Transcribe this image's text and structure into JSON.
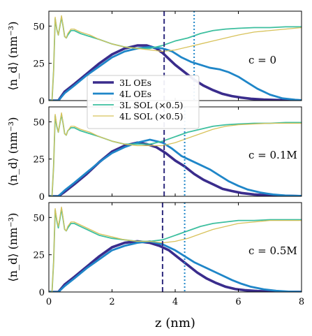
{
  "chart_data": [
    {
      "type": "line",
      "annotation": "c = 0",
      "ylabel": "⟨n_d⟩  (nm⁻³)",
      "xlabel": "",
      "xlim": [
        0,
        8
      ],
      "ylim": [
        0,
        60
      ],
      "xticks": [
        0,
        2,
        4,
        6,
        8
      ],
      "yticks": [
        0,
        25,
        50
      ],
      "vlines": [
        {
          "x": 3.65,
          "style": "dashed",
          "color": "#2e2a7e"
        },
        {
          "x": 4.6,
          "style": "dotted",
          "color": "#1f86c8"
        }
      ],
      "legend": "center-left",
      "series": [
        {
          "name": "3L OEs",
          "color": "#3a2c8c",
          "width": 3.6,
          "x": [
            0,
            0.08,
            0.18,
            0.3,
            0.5,
            0.8,
            1.2,
            1.6,
            2.0,
            2.4,
            2.8,
            3.1,
            3.4,
            3.6,
            3.8,
            4.0,
            4.3,
            4.6,
            4.9,
            5.2,
            5.5,
            5.8,
            6.1,
            6.4,
            6.8,
            7.2,
            7.6,
            8.0
          ],
          "y": [
            0,
            0,
            0,
            0,
            6,
            11,
            18,
            25,
            31,
            35,
            37,
            37,
            35,
            32,
            28,
            24,
            19,
            14,
            10,
            7,
            4.5,
            3,
            2,
            1.2,
            0.7,
            0.4,
            0.2,
            0.1
          ]
        },
        {
          "name": "4L OEs",
          "color": "#1f86c8",
          "width": 2.8,
          "x": [
            0,
            0.08,
            0.18,
            0.3,
            0.5,
            0.8,
            1.2,
            1.6,
            2.0,
            2.4,
            2.8,
            3.2,
            3.6,
            3.9,
            4.2,
            4.5,
            4.8,
            5.1,
            5.4,
            5.7,
            6.0,
            6.3,
            6.6,
            7.0,
            7.4,
            7.8,
            8.0
          ],
          "y": [
            0,
            0,
            0,
            0,
            5,
            10,
            17,
            23,
            29,
            33,
            35,
            36,
            35,
            33,
            29,
            26,
            24,
            22,
            21,
            19,
            16,
            12,
            8,
            4,
            1.5,
            0.6,
            0.3
          ]
        },
        {
          "name": "3L SOL (×0.5)",
          "color": "#3dbf9f",
          "width": 1.8,
          "x": [
            0,
            0.1,
            0.15,
            0.2,
            0.25,
            0.3,
            0.35,
            0.4,
            0.45,
            0.5,
            0.55,
            0.6,
            0.7,
            0.8,
            1.0,
            1.3,
            1.6,
            2.0,
            2.4,
            2.8,
            3.2,
            3.6,
            4.0,
            4.4,
            4.8,
            5.2,
            5.6,
            6.0,
            6.5,
            7.0,
            7.5,
            8.0
          ],
          "y": [
            0,
            0,
            20,
            55,
            48,
            44,
            50,
            56,
            50,
            43,
            42,
            44,
            47,
            47,
            45,
            43,
            41,
            38,
            36,
            35,
            35,
            37,
            40,
            42,
            45,
            47,
            48,
            48.5,
            49,
            49,
            49.5,
            49.5
          ]
        },
        {
          "name": "4L SOL (×0.5)",
          "color": "#d8c25a",
          "width": 1.3,
          "x": [
            0,
            0.1,
            0.15,
            0.2,
            0.25,
            0.3,
            0.35,
            0.4,
            0.45,
            0.5,
            0.55,
            0.6,
            0.7,
            0.8,
            1.0,
            1.3,
            1.6,
            2.0,
            2.4,
            2.8,
            3.2,
            3.6,
            4.0,
            4.4,
            4.8,
            5.2,
            5.6,
            6.0,
            6.5,
            7.0,
            7.5,
            8.0
          ],
          "y": [
            0,
            0,
            20,
            56,
            48,
            44,
            50,
            57,
            50,
            43,
            42,
            45,
            48,
            48,
            46,
            44,
            41,
            38,
            36,
            35,
            34,
            33,
            34,
            36,
            38,
            40,
            42,
            44,
            46,
            47,
            48,
            49
          ]
        }
      ]
    },
    {
      "type": "line",
      "annotation": "c = 0.1M",
      "ylabel": "⟨n_d⟩  (nm⁻³)",
      "xlabel": "",
      "xlim": [
        0,
        8
      ],
      "ylim": [
        0,
        60
      ],
      "xticks": [
        0,
        2,
        4,
        6,
        8
      ],
      "yticks": [
        0,
        25,
        50
      ],
      "vlines": [
        {
          "x": 3.65,
          "style": "dashed",
          "color": "#2e2a7e"
        },
        {
          "x": 4.3,
          "style": "dotted",
          "color": "#1f86c8"
        }
      ],
      "series": [
        {
          "name": "3L OEs",
          "color": "#3a2c8c",
          "width": 3.6,
          "x": [
            0,
            0.08,
            0.18,
            0.3,
            0.5,
            0.8,
            1.2,
            1.6,
            2.0,
            2.4,
            2.8,
            3.1,
            3.4,
            3.7,
            4.0,
            4.3,
            4.6,
            4.9,
            5.2,
            5.5,
            5.8,
            6.1,
            6.5,
            7.0,
            7.5,
            8.0
          ],
          "y": [
            0,
            0,
            0,
            0,
            3,
            8,
            15,
            23,
            30,
            34,
            36,
            35,
            33,
            29,
            24,
            20,
            15,
            11,
            8,
            5,
            3.5,
            2.2,
            1.2,
            0.6,
            0.3,
            0.1
          ]
        },
        {
          "name": "4L OEs",
          "color": "#1f86c8",
          "width": 2.8,
          "x": [
            0,
            0.08,
            0.18,
            0.3,
            0.5,
            0.8,
            1.2,
            1.6,
            2.0,
            2.4,
            2.8,
            3.2,
            3.6,
            3.9,
            4.2,
            4.5,
            4.8,
            5.1,
            5.4,
            5.7,
            6.0,
            6.3,
            6.7,
            7.1,
            7.5,
            8.0
          ],
          "y": [
            0,
            0,
            0,
            0,
            4,
            9,
            16,
            23,
            29,
            33,
            36,
            38,
            36,
            32,
            27,
            24,
            21,
            18,
            14,
            10,
            7,
            4.5,
            2.5,
            1.2,
            0.5,
            0.2
          ]
        },
        {
          "name": "3L SOL (×0.5)",
          "color": "#3dbf9f",
          "width": 1.8,
          "x": [
            0,
            0.1,
            0.15,
            0.2,
            0.25,
            0.3,
            0.35,
            0.4,
            0.45,
            0.5,
            0.55,
            0.6,
            0.7,
            0.8,
            1.0,
            1.3,
            1.6,
            2.0,
            2.4,
            2.8,
            3.2,
            3.6,
            4.0,
            4.4,
            4.8,
            5.2,
            5.6,
            6.0,
            6.5,
            7.0,
            7.5,
            8.0
          ],
          "y": [
            0,
            0,
            20,
            54,
            47,
            43,
            49,
            55,
            49,
            42,
            41,
            44,
            46,
            46,
            44,
            42,
            40,
            37,
            35,
            35,
            35,
            37,
            40,
            43,
            45,
            47,
            48,
            48.5,
            49,
            49,
            49.5,
            49.5
          ]
        },
        {
          "name": "4L SOL (×0.5)",
          "color": "#d8c25a",
          "width": 1.3,
          "x": [
            0,
            0.1,
            0.15,
            0.2,
            0.25,
            0.3,
            0.35,
            0.4,
            0.45,
            0.5,
            0.55,
            0.6,
            0.7,
            0.8,
            1.0,
            1.3,
            1.6,
            2.0,
            2.4,
            2.8,
            3.2,
            3.6,
            4.0,
            4.4,
            4.8,
            5.2,
            5.6,
            6.0,
            6.5,
            7.0,
            7.5,
            8.0
          ],
          "y": [
            0,
            0,
            20,
            55,
            48,
            43,
            49,
            56,
            49,
            42,
            41,
            44,
            47,
            47,
            45,
            43,
            40,
            37,
            35,
            34,
            34,
            34,
            36,
            39,
            42,
            45,
            47,
            48,
            48.5,
            49,
            49,
            49
          ]
        }
      ]
    },
    {
      "type": "line",
      "annotation": "c = 0.5M",
      "ylabel": "⟨n_d⟩  (nm⁻³)",
      "xlabel": "z  (nm)",
      "xlim": [
        0,
        8
      ],
      "ylim": [
        0,
        60
      ],
      "xticks": [
        0,
        2,
        4,
        6,
        8
      ],
      "yticks": [
        0,
        25,
        50
      ],
      "vlines": [
        {
          "x": 3.6,
          "style": "dashed",
          "color": "#2e2a7e"
        },
        {
          "x": 4.3,
          "style": "dotted",
          "color": "#1f86c8"
        }
      ],
      "series": [
        {
          "name": "3L OEs",
          "color": "#3a2c8c",
          "width": 3.6,
          "x": [
            0,
            0.08,
            0.18,
            0.3,
            0.5,
            0.8,
            1.2,
            1.6,
            2.0,
            2.4,
            2.8,
            3.2,
            3.5,
            3.8,
            4.1,
            4.4,
            4.7,
            5.0,
            5.3,
            5.6,
            5.9,
            6.2,
            6.6,
            7.0,
            7.5,
            8.0
          ],
          "y": [
            0,
            0,
            0,
            0,
            5,
            10,
            17,
            24,
            30,
            33,
            34,
            33,
            31,
            28,
            23,
            18,
            13,
            9,
            6,
            3.5,
            2,
            1.2,
            0.6,
            0.3,
            0.1,
            0.05
          ]
        },
        {
          "name": "4L OEs",
          "color": "#1f86c8",
          "width": 2.8,
          "x": [
            0,
            0.08,
            0.18,
            0.3,
            0.5,
            0.8,
            1.2,
            1.6,
            2.0,
            2.4,
            2.8,
            3.2,
            3.6,
            4.0,
            4.3,
            4.6,
            4.9,
            5.2,
            5.5,
            5.8,
            6.1,
            6.4,
            6.8,
            7.2,
            7.6,
            8.0
          ],
          "y": [
            0,
            0,
            0,
            0,
            4,
            9,
            16,
            22,
            28,
            31,
            33,
            34,
            32,
            28,
            24,
            20,
            17,
            14,
            11,
            8,
            5.5,
            3.5,
            1.8,
            0.8,
            0.3,
            0.1
          ]
        },
        {
          "name": "3L SOL (×0.5)",
          "color": "#3dbf9f",
          "width": 1.8,
          "x": [
            0,
            0.1,
            0.15,
            0.2,
            0.25,
            0.3,
            0.35,
            0.4,
            0.45,
            0.5,
            0.55,
            0.6,
            0.7,
            0.8,
            1.0,
            1.3,
            1.6,
            2.0,
            2.4,
            2.8,
            3.2,
            3.6,
            4.0,
            4.4,
            4.8,
            5.2,
            5.6,
            6.0,
            6.5,
            7.0,
            7.5,
            8.0
          ],
          "y": [
            0,
            0,
            20,
            55,
            48,
            43,
            49,
            56,
            49,
            42,
            41,
            43,
            46,
            46,
            44,
            41,
            38,
            36,
            35,
            34,
            34,
            35,
            38,
            41,
            44,
            46,
            47,
            48,
            48,
            48.5,
            48.5,
            48.5
          ]
        },
        {
          "name": "4L SOL (×0.5)",
          "color": "#d8c25a",
          "width": 1.3,
          "x": [
            0,
            0.1,
            0.15,
            0.2,
            0.25,
            0.3,
            0.35,
            0.4,
            0.45,
            0.5,
            0.55,
            0.6,
            0.7,
            0.8,
            1.0,
            1.3,
            1.6,
            2.0,
            2.4,
            2.8,
            3.2,
            3.6,
            4.0,
            4.4,
            4.8,
            5.2,
            5.6,
            6.0,
            6.5,
            7.0,
            7.5,
            8.0
          ],
          "y": [
            0,
            0,
            20,
            56,
            49,
            44,
            50,
            57,
            50,
            42,
            41,
            44,
            47,
            47,
            45,
            42,
            39,
            37,
            35,
            34,
            34,
            33,
            34,
            36,
            39,
            42,
            44,
            46,
            47,
            48,
            48,
            48
          ]
        }
      ]
    }
  ]
}
